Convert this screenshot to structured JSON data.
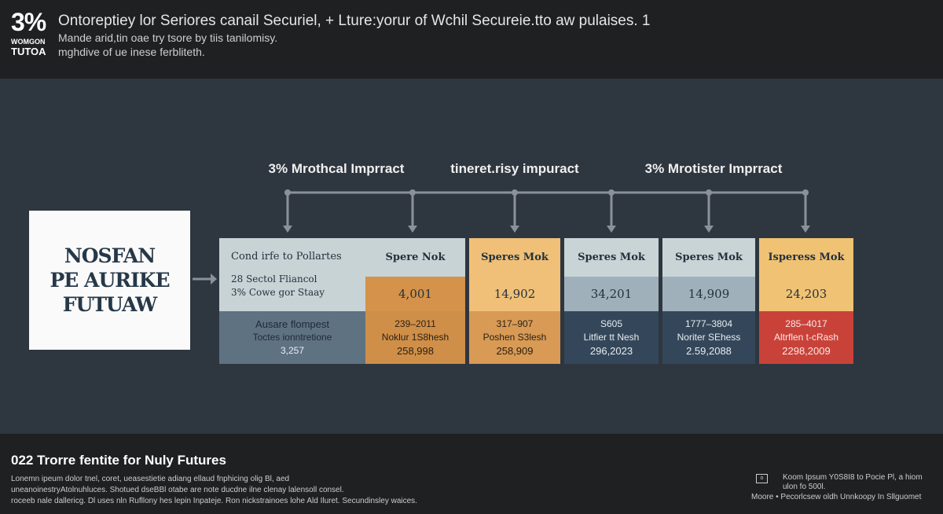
{
  "header": {
    "logo_big": "3%",
    "logo_small1": "WOMGON",
    "logo_small2": "TUTOA",
    "title": "Ontoreptiey lor Seriores canail Securiel, + Lture:yorur of Wchil Secureie.tto aw pulaises. 1",
    "subtitle1": "Mande arid,tin oae try tsore by tiis tanilomisy.",
    "subtitle2": "mghdive of ue inese ferbliteth."
  },
  "impact_labels": [
    "3% Mrothcal Imprract",
    "tineret.risy impuract",
    "3% Mrotister Imprract"
  ],
  "left_box": {
    "lines": [
      "NOSFAN",
      "PE AURIKE",
      "FUTUAW"
    ]
  },
  "table": {
    "first_col": {
      "title": "Cond irfe to Pollartes",
      "line1": "28 Sectol Fliancol",
      "line2": "3% Cowe gor Staay",
      "bottom1": "Ausare flompest",
      "bottom2": "Toctes ionntretione",
      "bottom3": "3,257"
    },
    "columns": [
      {
        "header": "Spere Nok",
        "value": "4,001",
        "b1": "239–2011",
        "b2": "Noklur 1S8hesh",
        "b3": "258,998"
      },
      {
        "header": "Speres Mok",
        "value": "14,902",
        "b1": "317–907",
        "b2": "Poshen S3lesh",
        "b3": "258,909"
      },
      {
        "header": "Speres Mok",
        "value": "34,201",
        "b1": "S605",
        "b2": "Litfier tt Nesh",
        "b3": "296,2023"
      },
      {
        "header": "Speres Mok",
        "value": "14,909",
        "b1": "1777–3804",
        "b2": "Noriter SEhess",
        "b3": "2.59,2088"
      },
      {
        "header": "Isperess Mok",
        "value": "24,203",
        "b1": "285–4017",
        "b2": "Altrflen t-cRash",
        "b3": "2298,2009"
      }
    ]
  },
  "footer": {
    "title": "022 Trorre fentite for Nuly Futures",
    "lines": [
      "Lonemn ipeum dolor tnel, coret, ueasestietie adiang ellaud fnphicing olig Bl, aed",
      "uneanoinestryAtolnuhluces. Shotued dseBBl otabe are note ducdne ilne clenay lalensoll consel.",
      "roceeb nale dallericg. Dl uses nln Rufllony hes lepin Inpateje. Ron nickstrainoes lohe Ald Iluret. Secundinsley waices."
    ],
    "right1": "Koom Ipsum Y0S8I8 to Pocie Pl, a hiom",
    "right2": "ulon fo 500l.",
    "right3": "Moore • Pecorlcsew oldh Unnkoopy In Sllguomet"
  },
  "colors": {
    "background": "#2e3640",
    "header_bg": "#1f2022",
    "light": "#c8d3d6",
    "orange": "#d4924a",
    "gold": "#f0c078",
    "navy": "#34475a",
    "red": "#c9423a",
    "slate": "#5f7282"
  }
}
